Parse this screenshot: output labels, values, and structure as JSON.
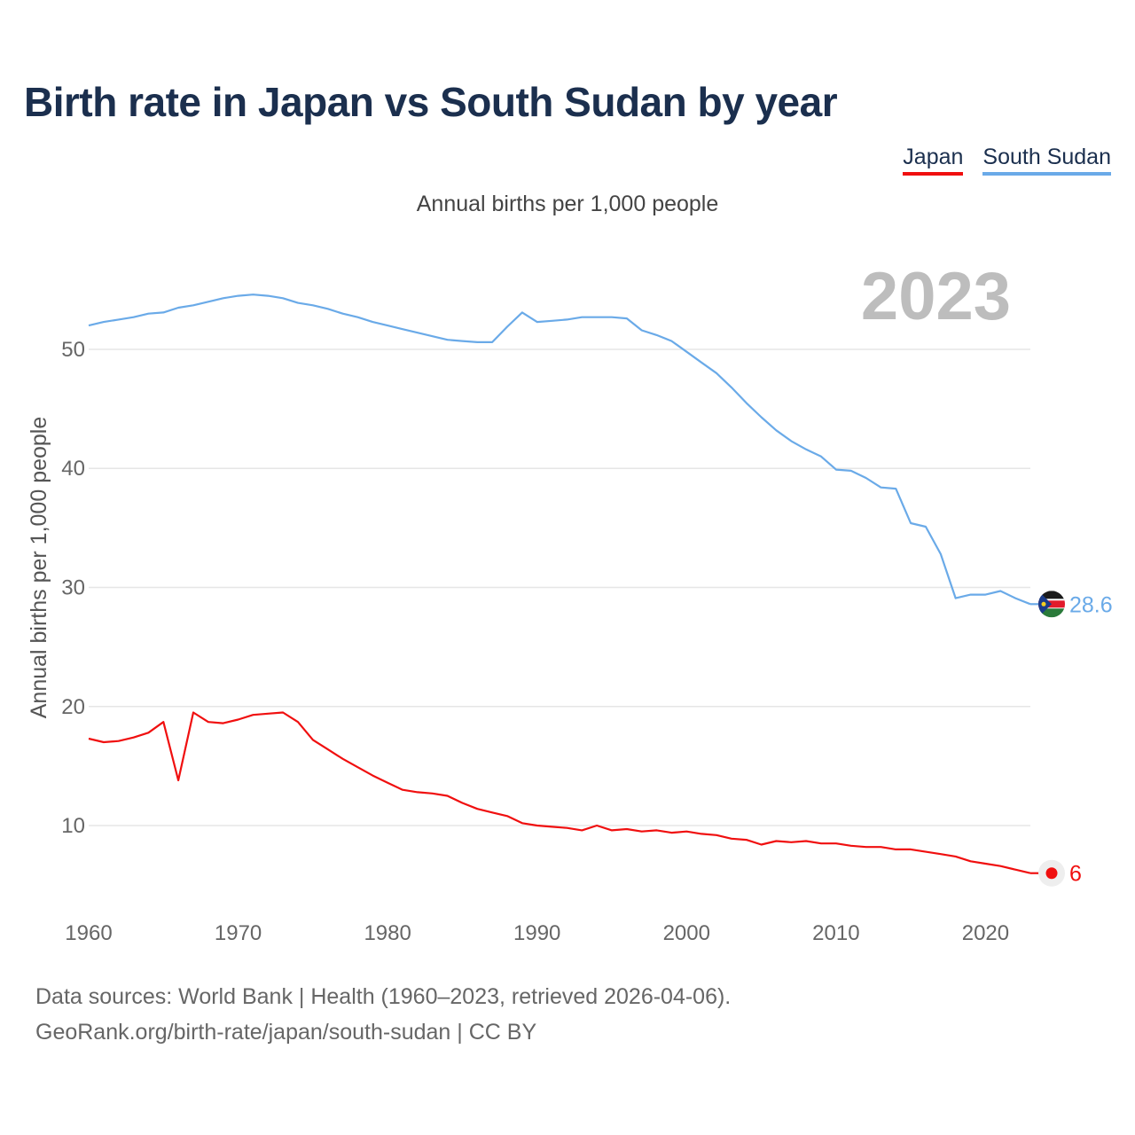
{
  "header": {
    "title": "Birth rate in Japan vs South Sudan by year"
  },
  "legend": {
    "japan": "Japan",
    "south_sudan": "South Sudan"
  },
  "chart_data": {
    "type": "line",
    "title": "Birth rate in Japan vs South Sudan by year",
    "subtitle": "Annual births per 1,000 people",
    "ylabel": "Annual births per 1,000 people",
    "xlabel": "",
    "xlim": [
      1960,
      2023
    ],
    "ylim": [
      3,
      57
    ],
    "yticks": [
      10,
      20,
      30,
      40,
      50
    ],
    "xticks": [
      1960,
      1970,
      1980,
      1990,
      2000,
      2010,
      2020
    ],
    "highlight_year": "2023",
    "x": [
      1960,
      1961,
      1962,
      1963,
      1964,
      1965,
      1966,
      1967,
      1968,
      1969,
      1970,
      1971,
      1972,
      1973,
      1974,
      1975,
      1976,
      1977,
      1978,
      1979,
      1980,
      1981,
      1982,
      1983,
      1984,
      1985,
      1986,
      1987,
      1988,
      1989,
      1990,
      1991,
      1992,
      1993,
      1994,
      1995,
      1996,
      1997,
      1998,
      1999,
      2000,
      2001,
      2002,
      2003,
      2004,
      2005,
      2006,
      2007,
      2008,
      2009,
      2010,
      2011,
      2012,
      2013,
      2014,
      2015,
      2016,
      2017,
      2018,
      2019,
      2020,
      2021,
      2022,
      2023
    ],
    "series": [
      {
        "name": "Japan",
        "color": "#f00f0f",
        "end_label": "6",
        "values": [
          17.3,
          17.0,
          17.1,
          17.4,
          17.8,
          18.7,
          13.8,
          19.5,
          18.7,
          18.6,
          18.9,
          19.3,
          19.4,
          19.5,
          18.7,
          17.2,
          16.4,
          15.6,
          14.9,
          14.2,
          13.6,
          13.0,
          12.8,
          12.7,
          12.5,
          11.9,
          11.4,
          11.1,
          10.8,
          10.2,
          10.0,
          9.9,
          9.8,
          9.6,
          10.0,
          9.6,
          9.7,
          9.5,
          9.6,
          9.4,
          9.5,
          9.3,
          9.2,
          8.9,
          8.8,
          8.4,
          8.7,
          8.6,
          8.7,
          8.5,
          8.5,
          8.3,
          8.2,
          8.2,
          8.0,
          8.0,
          7.8,
          7.6,
          7.4,
          7.0,
          6.8,
          6.6,
          6.3,
          6.0
        ]
      },
      {
        "name": "South Sudan",
        "color": "#6aaae8",
        "end_label": "28.6",
        "values": [
          52.0,
          52.3,
          52.5,
          52.7,
          53.0,
          53.1,
          53.5,
          53.7,
          54.0,
          54.3,
          54.5,
          54.6,
          54.5,
          54.3,
          53.9,
          53.7,
          53.4,
          53.0,
          52.7,
          52.3,
          52.0,
          51.7,
          51.4,
          51.1,
          50.8,
          50.7,
          50.6,
          50.6,
          51.9,
          53.1,
          52.3,
          52.4,
          52.5,
          52.7,
          52.7,
          52.7,
          52.6,
          51.6,
          51.2,
          50.7,
          49.8,
          48.9,
          48.0,
          46.8,
          45.5,
          44.3,
          43.2,
          42.3,
          41.6,
          41.0,
          39.9,
          39.8,
          39.2,
          38.4,
          38.3,
          35.4,
          35.1,
          32.8,
          29.1,
          29.4,
          29.4,
          29.7,
          29.1,
          28.6
        ]
      }
    ]
  },
  "footer": {
    "source_line1": "Data sources: World Bank | Health (1960–2023, retrieved 2026-04-06).",
    "source_line2": "GeoRank.org/birth-rate/japan/south-sudan | CC BY"
  }
}
